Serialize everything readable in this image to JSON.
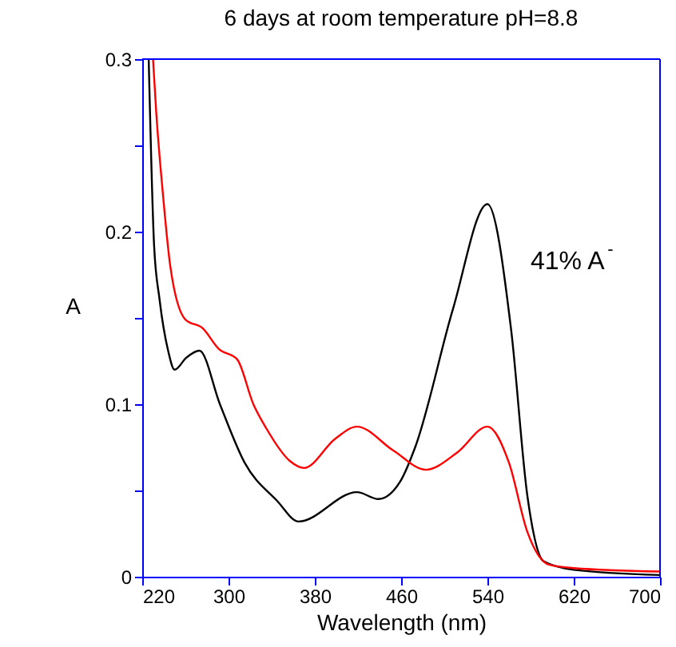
{
  "chart_data": {
    "type": "line",
    "title": "6 days at room temperature pH=8.8",
    "xlabel": "Wavelength (nm)",
    "ylabel": "A",
    "xlim": [
      220,
      700
    ],
    "xticks": [
      220,
      300,
      380,
      460,
      540,
      620,
      700
    ],
    "ylim": [
      0,
      0.3
    ],
    "yticks": [
      0,
      {
        "value": 0.05,
        "label": null
      },
      0.1,
      {
        "value": 0.15,
        "label": null
      },
      0.2,
      {
        "value": 0.25,
        "label": null
      },
      0.3
    ],
    "grid": false,
    "legend": false,
    "marker": "none",
    "line_style": "solid",
    "annotations": [
      "41% A$^{-}$"
    ],
    "series": [
      {
        "color": "#000000",
        "x": [
          226,
          231,
          236,
          244,
          250,
          261,
          273,
          292,
          315,
          345,
          365,
          419,
          439,
          459,
          473,
          508,
          540,
          562,
          577,
          592,
          620,
          700
        ],
        "values": [
          0.3,
          0.192,
          0.161,
          0.131,
          0.12,
          0.127,
          0.131,
          0.1,
          0.066,
          0.044,
          0.032,
          0.049,
          0.045,
          0.055,
          0.075,
          0.155,
          0.216,
          0.143,
          0.047,
          0.009,
          0.004,
          0.001
        ]
      },
      {
        "color": "#ff0000",
        "x": [
          230,
          233,
          239,
          246,
          260,
          276,
          291,
          308,
          323,
          335,
          357,
          370,
          399,
          419,
          453,
          483,
          512,
          540,
          560,
          577,
          597,
          620,
          700
        ],
        "values": [
          0.3,
          0.269,
          0.223,
          0.18,
          0.149,
          0.144,
          0.132,
          0.126,
          0.1,
          0.086,
          0.067,
          0.063,
          0.08,
          0.087,
          0.073,
          0.062,
          0.072,
          0.087,
          0.066,
          0.026,
          0.007,
          0.005,
          0.003
        ]
      }
    ]
  }
}
